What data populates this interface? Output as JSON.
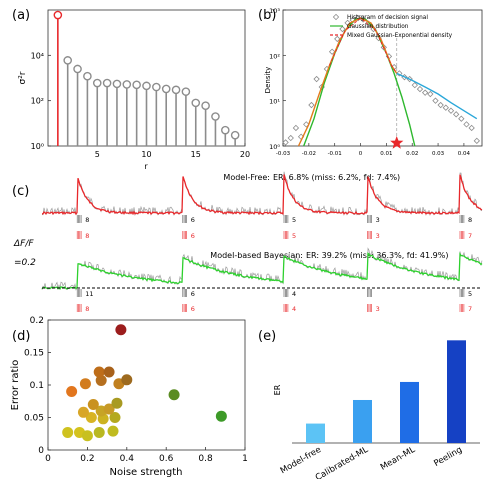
{
  "panel_labels": [
    "(a)",
    "(b)",
    "(c)",
    "(d)",
    "(e)"
  ],
  "chart_data": [
    {
      "panel": "a",
      "type": "stem",
      "xlabel": "r",
      "ylabel": "σ²r",
      "xlim": [
        0,
        20
      ],
      "yscale": "log",
      "ylim": [
        1,
        1000000
      ],
      "xticks": [
        "5",
        "10",
        "15",
        "20"
      ],
      "yticks": [
        "10⁰",
        "10²",
        "10⁴"
      ],
      "x": [
        1,
        2,
        3,
        4,
        5,
        6,
        7,
        8,
        9,
        10,
        11,
        12,
        13,
        14,
        15,
        16,
        17,
        18,
        19
      ],
      "values": [
        600000,
        6000,
        2500,
        1200,
        600,
        600,
        550,
        520,
        500,
        450,
        400,
        330,
        300,
        250,
        80,
        60,
        20,
        5,
        3
      ],
      "highlight_index": 0,
      "highlight_color": "#e8282b",
      "color": "#8c8c8c"
    },
    {
      "panel": "b",
      "type": "histogram-line",
      "ylabel": "Density",
      "yscale": "log",
      "xlim": [
        -0.03,
        0.047
      ],
      "ylim": [
        1,
        1000
      ],
      "xticks": [
        "-0.03",
        "-0.02",
        "-0.01",
        "0",
        "0.01",
        "0.02",
        "0.03",
        "0.04"
      ],
      "yticks": [
        "10⁰",
        "10¹",
        "10²",
        "10³"
      ],
      "legend_position": "top-right",
      "series": [
        {
          "name": "Histrgram of decision signal",
          "style": "diamond",
          "color": "#8c8c8c",
          "x": [
            -0.029,
            -0.027,
            -0.025,
            -0.023,
            -0.021,
            -0.019,
            -0.017,
            -0.015,
            -0.013,
            -0.011,
            -0.009,
            -0.007,
            -0.005,
            -0.003,
            -0.001,
            0.001,
            0.003,
            0.005,
            0.007,
            0.009,
            0.011,
            0.013,
            0.015,
            0.017,
            0.019,
            0.021,
            0.023,
            0.025,
            0.027,
            0.029,
            0.031,
            0.033,
            0.035,
            0.037,
            0.039,
            0.041,
            0.043,
            0.045
          ],
          "y": [
            1.2,
            1.5,
            2.5,
            1.6,
            3,
            8,
            30,
            20,
            50,
            120,
            230,
            380,
            520,
            600,
            660,
            620,
            500,
            380,
            240,
            150,
            95,
            55,
            40,
            33,
            30,
            22,
            18,
            15,
            14,
            10,
            8,
            7,
            6,
            5,
            4,
            3,
            2.5,
            1.3
          ]
        },
        {
          "name": "Gaussian distribution",
          "style": "line",
          "color": "#2eb82e",
          "x": [
            -0.022,
            -0.018,
            -0.014,
            -0.01,
            -0.006,
            -0.002,
            0,
            0.002,
            0.006,
            0.01,
            0.013,
            0.016,
            0.019,
            0.021
          ],
          "y": [
            1,
            4,
            25,
            110,
            350,
            620,
            660,
            620,
            350,
            110,
            40,
            12,
            3,
            1
          ]
        },
        {
          "name": "",
          "style": "line",
          "color": "#e37b1c",
          "x": [
            -0.024,
            -0.02,
            -0.016,
            -0.012,
            -0.008,
            -0.004,
            0,
            0.004,
            0.008,
            0.012,
            0.014
          ],
          "y": [
            1,
            3,
            14,
            60,
            220,
            520,
            660,
            520,
            220,
            60,
            40
          ]
        },
        {
          "name": "Mixed Gaussian-Exponential density",
          "style": "dashed",
          "color": "#e8282b",
          "x": [
            -0.012,
            -0.006,
            0,
            0.006,
            0.012,
            0.014
          ],
          "y": [
            60,
            350,
            660,
            350,
            60,
            40
          ]
        },
        {
          "name": "",
          "style": "line",
          "color": "#2aa7d9",
          "x": [
            0.014,
            0.02,
            0.025,
            0.03,
            0.035,
            0.04,
            0.045
          ],
          "y": [
            40,
            28,
            20,
            14,
            9,
            6,
            4
          ]
        }
      ],
      "threshold_x": 0.014,
      "threshold_marker_color": "#e8282b"
    },
    {
      "panel": "c",
      "type": "traces",
      "y_scale_label": "ΔF/F",
      "y_scale_value": "=0.2",
      "rows": [
        {
          "title": "Model-Free:",
          "stats": "ER: 6.8% (miss: 6.2%, fd: 7.4%)",
          "trace_color": "#e8282b",
          "event_times": [
            0.08,
            0.32,
            0.55,
            0.74,
            0.95
          ],
          "top_counts": [
            "8",
            "6",
            "5",
            "3",
            "8"
          ],
          "bottom_counts": [
            "8",
            "6",
            "5",
            "3",
            "7"
          ]
        },
        {
          "title": "Model-based Bayesian:",
          "stats": "ER: 39.2% (miss: 36.3%, fd: 41.9%)",
          "trace_color": "#2ed12e",
          "event_times": [
            0.08,
            0.32,
            0.55,
            0.74,
            0.95
          ],
          "top_counts": [
            "11",
            "6",
            "4",
            "",
            "5"
          ],
          "bottom_counts": [
            "8",
            "6",
            "4",
            "3",
            "7"
          ]
        }
      ]
    },
    {
      "panel": "d",
      "type": "scatter",
      "xlabel": "Noise strength",
      "ylabel": "Error ratio",
      "xlim": [
        0,
        1
      ],
      "ylim": [
        0,
        0.2
      ],
      "xticks": [
        "0",
        "0.2",
        "0.4",
        "0.6",
        "0.8",
        "1"
      ],
      "yticks": [
        "0",
        "0.05",
        "0.1",
        "0.15",
        "0.2"
      ],
      "points": [
        {
          "x": 0.1,
          "y": 0.027,
          "color": "#cfc21f"
        },
        {
          "x": 0.16,
          "y": 0.027,
          "color": "#d4c21d"
        },
        {
          "x": 0.2,
          "y": 0.022,
          "color": "#c8c01f"
        },
        {
          "x": 0.26,
          "y": 0.027,
          "color": "#b9b820"
        },
        {
          "x": 0.33,
          "y": 0.029,
          "color": "#c0bb1f"
        },
        {
          "x": 0.22,
          "y": 0.05,
          "color": "#d8b424"
        },
        {
          "x": 0.28,
          "y": 0.048,
          "color": "#ccb321"
        },
        {
          "x": 0.34,
          "y": 0.05,
          "color": "#b4a91e"
        },
        {
          "x": 0.18,
          "y": 0.058,
          "color": "#d8a628"
        },
        {
          "x": 0.27,
          "y": 0.06,
          "color": "#c7a426"
        },
        {
          "x": 0.31,
          "y": 0.063,
          "color": "#c79a27"
        },
        {
          "x": 0.23,
          "y": 0.07,
          "color": "#c9921f"
        },
        {
          "x": 0.35,
          "y": 0.072,
          "color": "#a89a22"
        },
        {
          "x": 0.12,
          "y": 0.09,
          "color": "#e2761e"
        },
        {
          "x": 0.19,
          "y": 0.102,
          "color": "#d27c1e"
        },
        {
          "x": 0.27,
          "y": 0.107,
          "color": "#b56f1f"
        },
        {
          "x": 0.36,
          "y": 0.102,
          "color": "#c1801f"
        },
        {
          "x": 0.26,
          "y": 0.12,
          "color": "#be6d19"
        },
        {
          "x": 0.31,
          "y": 0.12,
          "color": "#a8611a"
        },
        {
          "x": 0.4,
          "y": 0.108,
          "color": "#9d6a1f"
        },
        {
          "x": 0.37,
          "y": 0.185,
          "color": "#9c1d1d"
        },
        {
          "x": 0.64,
          "y": 0.085,
          "color": "#5b8c22"
        },
        {
          "x": 0.88,
          "y": 0.052,
          "color": "#3d9a28"
        }
      ]
    },
    {
      "panel": "e",
      "type": "bar",
      "ylabel": "ER",
      "ylim": [
        0,
        40
      ],
      "categories": [
        "Model-free",
        "Calibrated-ML",
        "Mean-ML",
        "Peeling"
      ],
      "values": [
        7,
        15.5,
        22,
        37
      ],
      "colors": [
        "#5cc3f5",
        "#3aa0f0",
        "#1f6de6",
        "#1541c4"
      ]
    }
  ]
}
